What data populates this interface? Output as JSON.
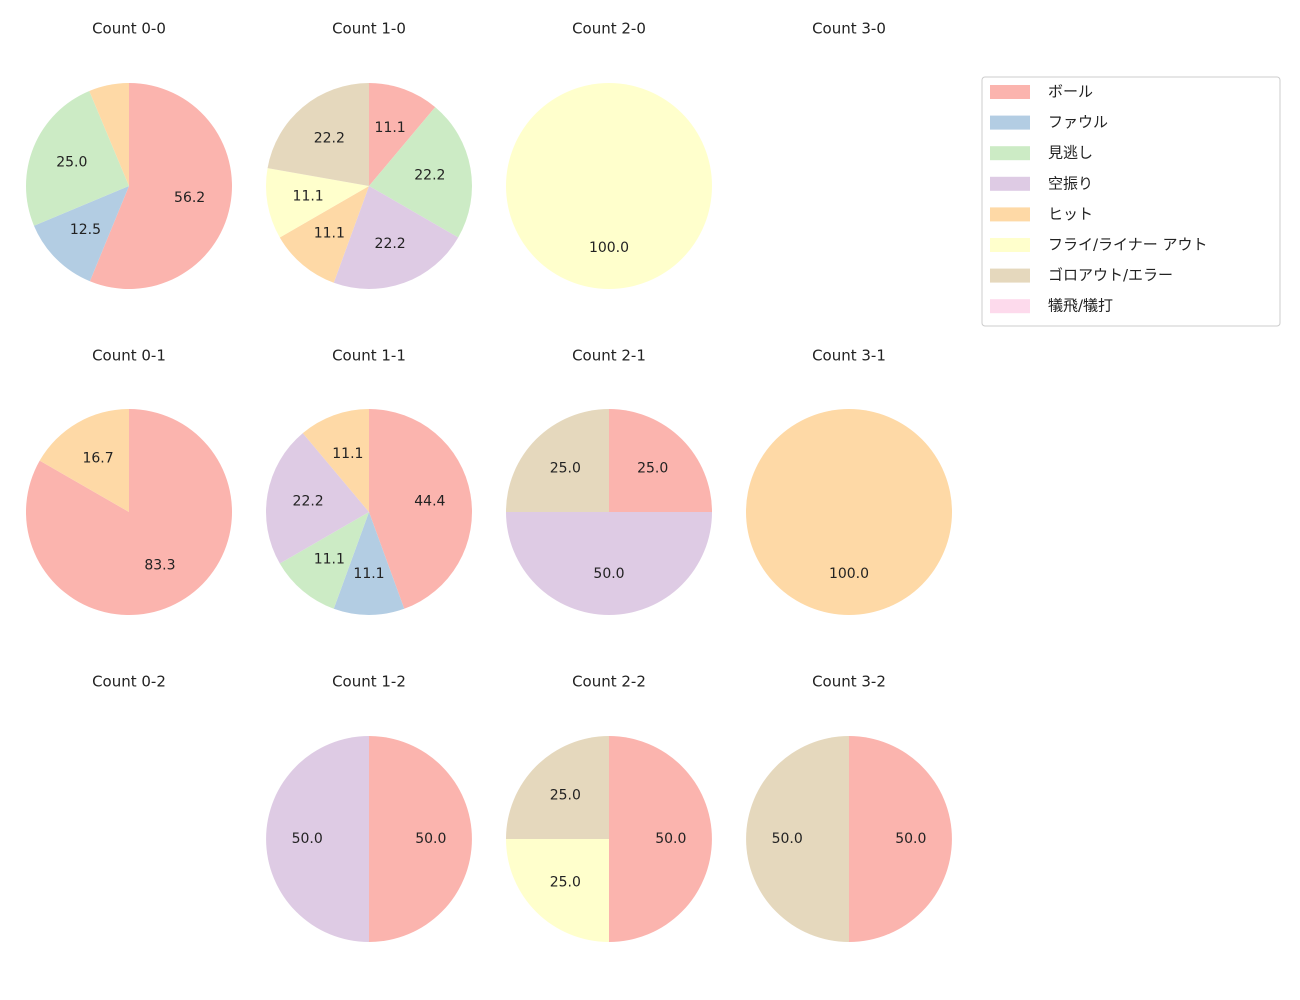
{
  "legend": {
    "labels": [
      "ボール",
      "ファウル",
      "見逃し",
      "空振り",
      "ヒット",
      "フライ/ライナー アウト",
      "ゴロアウト/エラー",
      "犠飛/犠打"
    ],
    "colors": [
      "#fbb4ae",
      "#b3cde3",
      "#ccebc5",
      "#decbe4",
      "#fed9a6",
      "#ffffcc",
      "#e5d8bd",
      "#fddaec"
    ]
  },
  "chart_data": [
    {
      "type": "pie",
      "title": "Count 0-0",
      "values": [
        56.2,
        12.5,
        25.0,
        0,
        6.3,
        0,
        0,
        0
      ],
      "value_labels": [
        "56.2",
        "12.5",
        "25.0",
        null,
        null,
        null,
        null,
        null
      ]
    },
    {
      "type": "pie",
      "title": "Count 1-0",
      "values": [
        11.1,
        0,
        22.2,
        22.2,
        11.1,
        11.1,
        22.2,
        0
      ],
      "value_labels": [
        "11.1",
        null,
        "22.2",
        "22.2",
        "11.1",
        "11.1",
        "22.2",
        null
      ]
    },
    {
      "type": "pie",
      "title": "Count 2-0",
      "values": [
        0,
        0,
        0,
        0,
        0,
        100.0,
        0,
        0
      ],
      "value_labels": [
        null,
        null,
        null,
        null,
        null,
        "100.0",
        null,
        null
      ]
    },
    {
      "type": "pie",
      "title": "Count 3-0",
      "values": [],
      "value_labels": []
    },
    {
      "type": "pie",
      "title": "Count 0-1",
      "values": [
        83.3,
        0,
        0,
        0,
        16.7,
        0,
        0,
        0
      ],
      "value_labels": [
        "83.3",
        null,
        null,
        null,
        "16.7",
        null,
        null,
        null
      ]
    },
    {
      "type": "pie",
      "title": "Count 1-1",
      "values": [
        44.4,
        11.1,
        11.1,
        22.2,
        11.1,
        0,
        0,
        0
      ],
      "value_labels": [
        "44.4",
        "11.1",
        "11.1",
        "22.2",
        "11.1",
        null,
        null,
        null
      ]
    },
    {
      "type": "pie",
      "title": "Count 2-1",
      "values": [
        25.0,
        0,
        0,
        50.0,
        0,
        0,
        25.0,
        0
      ],
      "value_labels": [
        "25.0",
        null,
        null,
        "50.0",
        null,
        null,
        "25.0",
        null
      ]
    },
    {
      "type": "pie",
      "title": "Count 3-1",
      "values": [
        0,
        0,
        0,
        0,
        100.0,
        0,
        0,
        0
      ],
      "value_labels": [
        null,
        null,
        null,
        null,
        "100.0",
        null,
        null,
        null
      ]
    },
    {
      "type": "pie",
      "title": "Count 0-2",
      "values": [],
      "value_labels": []
    },
    {
      "type": "pie",
      "title": "Count 1-2",
      "values": [
        50.0,
        0,
        0,
        50.0,
        0,
        0,
        0,
        0
      ],
      "value_labels": [
        "50.0",
        null,
        null,
        "50.0",
        null,
        null,
        null,
        null
      ]
    },
    {
      "type": "pie",
      "title": "Count 2-2",
      "values": [
        50.0,
        0,
        0,
        0,
        0,
        25.0,
        25.0,
        0
      ],
      "value_labels": [
        "50.0",
        null,
        null,
        null,
        null,
        "25.0",
        "25.0",
        null
      ]
    },
    {
      "type": "pie",
      "title": "Count 3-2",
      "values": [
        50.0,
        0,
        0,
        0,
        0,
        0,
        50.0,
        0
      ],
      "value_labels": [
        "50.0",
        null,
        null,
        null,
        null,
        null,
        "50.0",
        null
      ]
    }
  ]
}
